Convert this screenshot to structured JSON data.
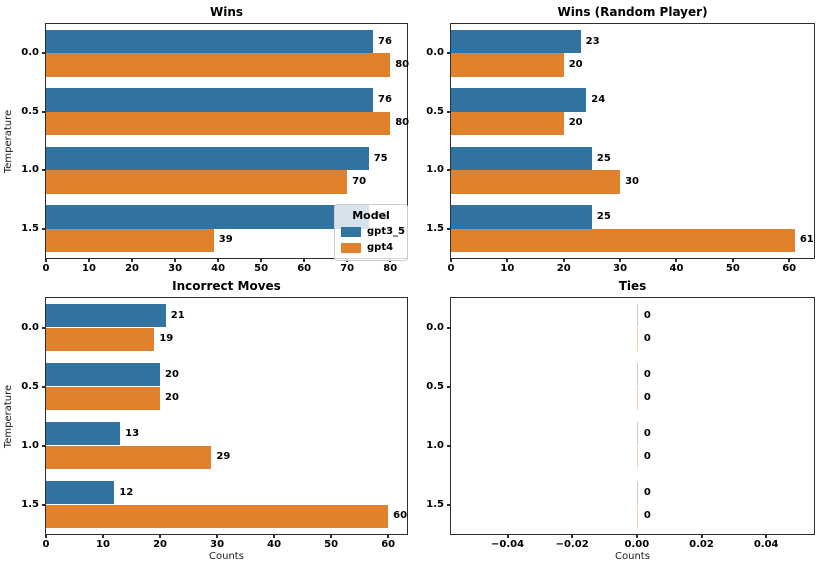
{
  "figure": {
    "background": "#ffffff"
  },
  "palette": {
    "gpt3_5": "#3274a1",
    "gpt4": "#e1812c",
    "zero_bar_gpt3_5": "rgba(50,116,161,0.35)",
    "zero_bar_gpt4": "rgba(225,129,44,0.35)",
    "spine": "#2e2e2e"
  },
  "legend": {
    "title": "Model",
    "entries": [
      {
        "label": "gpt3_5",
        "color": "#3274a1"
      },
      {
        "label": "gpt4",
        "color": "#e1812c"
      }
    ]
  },
  "chart_data": [
    {
      "type": "bar",
      "orientation": "horizontal",
      "title": "Wins",
      "xlabel": "",
      "ylabel": "Temperature",
      "categories": [
        "0.0",
        "0.5",
        "1.0",
        "1.5"
      ],
      "series": [
        {
          "name": "gpt3_5",
          "color": "#3274a1",
          "values": [
            76,
            76,
            75,
            75
          ]
        },
        {
          "name": "gpt4",
          "color": "#e1812c",
          "values": [
            80,
            80,
            70,
            39
          ]
        }
      ],
      "xlim": [
        0,
        83.9
      ],
      "xticks": [
        0,
        10,
        20,
        30,
        40,
        50,
        60,
        70,
        80
      ],
      "xtick_labels": [
        "0",
        "10",
        "20",
        "30",
        "40",
        "50",
        "60",
        "70",
        "80"
      ],
      "grid": false,
      "legend_position": "lower right",
      "bar_labels": true
    },
    {
      "type": "bar",
      "orientation": "horizontal",
      "title": "Wins (Random Player)",
      "xlabel": "",
      "ylabel": "",
      "categories": [
        "0.0",
        "0.5",
        "1.0",
        "1.5"
      ],
      "series": [
        {
          "name": "gpt3_5",
          "color": "#3274a1",
          "values": [
            23,
            24,
            25,
            25
          ]
        },
        {
          "name": "gpt4",
          "color": "#e1812c",
          "values": [
            20,
            20,
            30,
            61
          ]
        }
      ],
      "xlim": [
        0,
        64.4
      ],
      "xticks": [
        0,
        10,
        20,
        30,
        40,
        50,
        60
      ],
      "xtick_labels": [
        "0",
        "10",
        "20",
        "30",
        "40",
        "50",
        "60"
      ],
      "grid": false,
      "legend_position": "none",
      "bar_labels": true
    },
    {
      "type": "bar",
      "orientation": "horizontal",
      "title": "Incorrect Moves",
      "xlabel": "Counts",
      "ylabel": "Temperature",
      "categories": [
        "0.0",
        "0.5",
        "1.0",
        "1.5"
      ],
      "series": [
        {
          "name": "gpt3_5",
          "color": "#3274a1",
          "values": [
            21,
            20,
            13,
            12
          ]
        },
        {
          "name": "gpt4",
          "color": "#e1812c",
          "values": [
            19,
            20,
            29,
            60
          ]
        }
      ],
      "xlim": [
        0,
        63.3
      ],
      "xticks": [
        0,
        10,
        20,
        30,
        40,
        50,
        60
      ],
      "xtick_labels": [
        "0",
        "10",
        "20",
        "30",
        "40",
        "50",
        "60"
      ],
      "grid": false,
      "legend_position": "none",
      "bar_labels": true
    },
    {
      "type": "bar",
      "orientation": "horizontal",
      "title": "Ties",
      "xlabel": "Counts",
      "ylabel": "",
      "categories": [
        "0.0",
        "0.5",
        "1.0",
        "1.5"
      ],
      "series": [
        {
          "name": "gpt3_5",
          "color": "#3274a1",
          "values": [
            0,
            0,
            0,
            0
          ]
        },
        {
          "name": "gpt4",
          "color": "#e1812c",
          "values": [
            0,
            0,
            0,
            0
          ]
        }
      ],
      "xlim": [
        -0.0575,
        0.0548
      ],
      "xticks": [
        -0.04,
        -0.02,
        0.0,
        0.02,
        0.04
      ],
      "xtick_labels": [
        "−0.04",
        "−0.02",
        "0.00",
        "0.02",
        "0.04"
      ],
      "grid": false,
      "legend_position": "none",
      "bar_labels": true
    }
  ]
}
